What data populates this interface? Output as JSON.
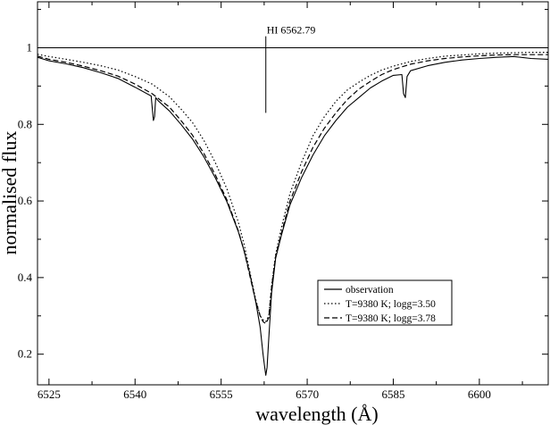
{
  "chart_data": {
    "type": "line",
    "title": "",
    "xlabel": "wavelength (Å)",
    "ylabel": "normalised flux",
    "xlim": [
      6523,
      6612
    ],
    "ylim": [
      0.12,
      1.12
    ],
    "x_ticks": [
      6525,
      6540,
      6555,
      6570,
      6585,
      6600
    ],
    "y_ticks": [
      0.2,
      0.4,
      0.6,
      0.8,
      1
    ],
    "x_tick_labels": [
      "6525",
      "6540",
      "6555",
      "6570",
      "6585",
      "6600"
    ],
    "y_tick_labels": [
      "0.2",
      "0.4",
      "0.6",
      "0.8",
      "1"
    ],
    "grid": false,
    "legend_position": "bottom-right",
    "reference_line": {
      "y": 1
    },
    "annotation": {
      "text": "HI  6562.79",
      "x": 6562.79,
      "y_from": 0.83,
      "y_to": 1.03
    },
    "series": [
      {
        "name": "observation",
        "style": "solid",
        "x": [
          6523,
          6525,
          6528,
          6531,
          6534,
          6537,
          6540,
          6542.8,
          6543.2,
          6543.4,
          6543.6,
          6544,
          6546,
          6548,
          6550,
          6552,
          6554,
          6556,
          6558,
          6559,
          6560,
          6561,
          6561.8,
          6562.3,
          6562.6,
          6562.79,
          6563.0,
          6563.3,
          6563.8,
          6564.5,
          6565.5,
          6567,
          6569,
          6571,
          6573,
          6575,
          6577,
          6579,
          6581,
          6583,
          6585,
          6586.5,
          6586.8,
          6587.1,
          6587.4,
          6588,
          6591,
          6594,
          6597,
          6600,
          6603,
          6606,
          6609,
          6612
        ],
        "y": [
          0.975,
          0.966,
          0.958,
          0.948,
          0.935,
          0.92,
          0.897,
          0.874,
          0.81,
          0.82,
          0.87,
          0.862,
          0.835,
          0.8,
          0.762,
          0.715,
          0.66,
          0.598,
          0.52,
          0.47,
          0.41,
          0.34,
          0.27,
          0.2,
          0.165,
          0.145,
          0.165,
          0.24,
          0.36,
          0.45,
          0.51,
          0.59,
          0.66,
          0.72,
          0.77,
          0.81,
          0.845,
          0.87,
          0.895,
          0.913,
          0.928,
          0.93,
          0.88,
          0.87,
          0.925,
          0.94,
          0.953,
          0.962,
          0.968,
          0.972,
          0.975,
          0.977,
          0.972,
          0.97
        ]
      },
      {
        "name": "T=9380 K; logg=3.50",
        "style": "dotted",
        "x": [
          6523,
          6525,
          6528,
          6531,
          6534,
          6537,
          6540,
          6543,
          6546,
          6548,
          6550,
          6552,
          6554,
          6556,
          6558,
          6559,
          6560,
          6561,
          6561.8,
          6562.3,
          6562.79,
          6563.3,
          6563.8,
          6564.5,
          6565.5,
          6567,
          6569,
          6571,
          6573,
          6575,
          6577,
          6579,
          6581,
          6583,
          6585,
          6588,
          6591,
          6594,
          6597,
          6600,
          6603,
          6606,
          6609,
          6612
        ],
        "y": [
          0.983,
          0.977,
          0.97,
          0.962,
          0.953,
          0.942,
          0.925,
          0.905,
          0.872,
          0.84,
          0.805,
          0.758,
          0.7,
          0.632,
          0.545,
          0.487,
          0.415,
          0.345,
          0.3,
          0.29,
          0.285,
          0.3,
          0.38,
          0.46,
          0.53,
          0.62,
          0.7,
          0.77,
          0.82,
          0.86,
          0.89,
          0.91,
          0.928,
          0.942,
          0.952,
          0.964,
          0.972,
          0.978,
          0.981,
          0.984,
          0.986,
          0.987,
          0.988,
          0.988
        ]
      },
      {
        "name": "T=9380 K; logg=3.78",
        "style": "dashed",
        "x": [
          6523,
          6525,
          6528,
          6531,
          6534,
          6537,
          6540,
          6543,
          6546,
          6548,
          6550,
          6552,
          6554,
          6556,
          6558,
          6559,
          6560,
          6561,
          6561.8,
          6562.3,
          6562.79,
          6563.3,
          6563.8,
          6564.5,
          6565.5,
          6567,
          6569,
          6571,
          6573,
          6575,
          6577,
          6579,
          6581,
          6583,
          6585,
          6588,
          6591,
          6594,
          6597,
          6600,
          6603,
          6606,
          6609,
          6612
        ],
        "y": [
          0.978,
          0.97,
          0.962,
          0.952,
          0.94,
          0.926,
          0.905,
          0.88,
          0.845,
          0.81,
          0.772,
          0.724,
          0.668,
          0.603,
          0.522,
          0.47,
          0.405,
          0.34,
          0.3,
          0.285,
          0.28,
          0.295,
          0.375,
          0.455,
          0.515,
          0.6,
          0.675,
          0.74,
          0.79,
          0.83,
          0.865,
          0.892,
          0.912,
          0.93,
          0.943,
          0.957,
          0.966,
          0.972,
          0.976,
          0.979,
          0.981,
          0.982,
          0.982,
          0.982
        ]
      }
    ]
  }
}
